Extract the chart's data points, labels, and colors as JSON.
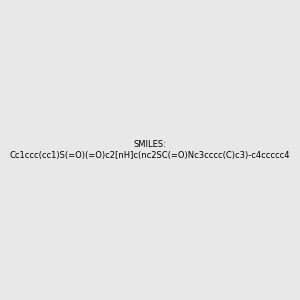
{
  "smiles": "Cc1ccc(cc1)S(=O)(=O)c2[nH]c(nc2SC(=O)Nc3cccc(C)c3)-c4ccccc4",
  "img_size": [
    300,
    300
  ],
  "background_color": "#e8e8e8",
  "title": "",
  "atom_colors": {
    "N": "blue",
    "O": "red",
    "S": "yellow"
  }
}
